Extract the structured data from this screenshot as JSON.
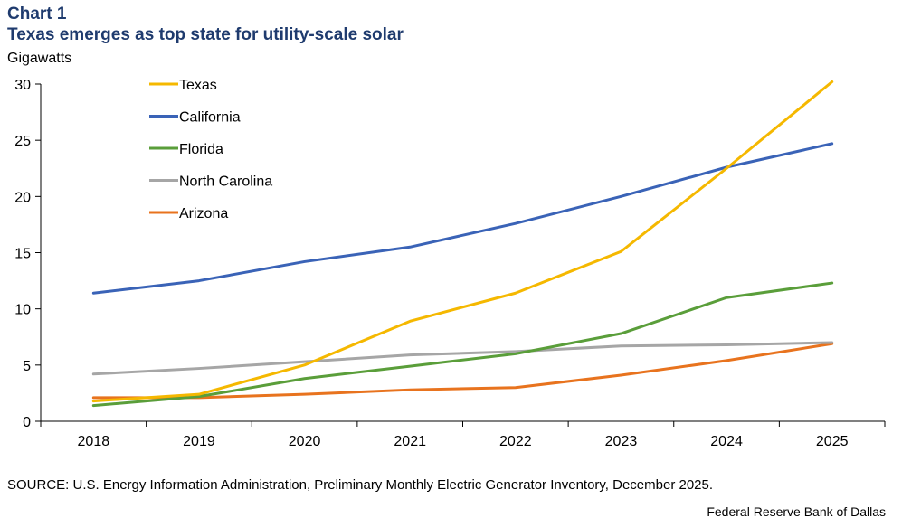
{
  "header": {
    "label": "Chart 1",
    "title": "Texas emerges as top state for utility-scale solar",
    "unit": "Gigawatts"
  },
  "footer": {
    "source": "SOURCE: U.S. Energy Information Administration, Preliminary Monthly Electric Generator Inventory, December 2025.",
    "credit": "Federal Reserve Bank of Dallas"
  },
  "chart_data": {
    "type": "line",
    "title": "Texas emerges as top state for utility-scale solar",
    "ylabel": "Gigawatts",
    "xlabel": "",
    "x": [
      "2018",
      "2019",
      "2020",
      "2021",
      "2022",
      "2023",
      "2024",
      "2025"
    ],
    "ylim": [
      0,
      30
    ],
    "yticks": [
      0,
      5,
      10,
      15,
      20,
      25,
      30
    ],
    "legend_position": "top-left",
    "series": [
      {
        "name": "Texas",
        "color": "#f5b800",
        "values": [
          1.8,
          2.4,
          5.0,
          8.9,
          11.4,
          15.1,
          22.5,
          30.2
        ]
      },
      {
        "name": "California",
        "color": "#3a63b7",
        "values": [
          11.4,
          12.5,
          14.2,
          15.5,
          17.6,
          20.0,
          22.6,
          24.7
        ]
      },
      {
        "name": "Florida",
        "color": "#5a9e3a",
        "values": [
          1.4,
          2.2,
          3.8,
          4.9,
          6.0,
          7.8,
          11.0,
          12.3
        ]
      },
      {
        "name": "North Carolina",
        "color": "#a6a6a6",
        "values": [
          4.2,
          4.7,
          5.3,
          5.9,
          6.2,
          6.7,
          6.8,
          7.0
        ]
      },
      {
        "name": "Arizona",
        "color": "#e8731e",
        "values": [
          2.1,
          2.1,
          2.4,
          2.8,
          3.0,
          4.1,
          5.4,
          6.9
        ]
      }
    ]
  }
}
